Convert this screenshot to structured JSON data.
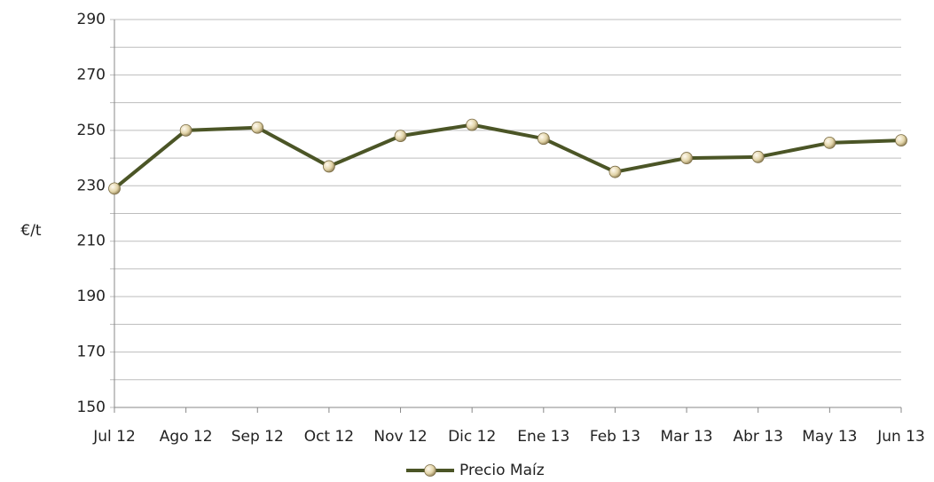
{
  "chart_data": {
    "type": "line",
    "y_label": "€/t",
    "categories": [
      "Jul 12",
      "Ago 12",
      "Sep 12",
      "Oct 12",
      "Nov 12",
      "Dic 12",
      "Ene 13",
      "Feb 13",
      "Mar 13",
      "Abr 13",
      "May 13",
      "Jun 13"
    ],
    "series": [
      {
        "name": "Precio Maíz",
        "color": "#4b5526",
        "marker_color": "#e8dcb8",
        "values": [
          229,
          250,
          251,
          237,
          248,
          252,
          247,
          235,
          240,
          240.4,
          245.5,
          246.4
        ]
      }
    ],
    "ylim": [
      150,
      290
    ],
    "yticks": [
      150,
      170,
      190,
      210,
      230,
      250,
      270,
      290
    ],
    "minor_yticks": [
      160,
      180,
      200,
      220,
      240,
      260,
      280
    ],
    "grid": true,
    "legend": "bottom"
  }
}
